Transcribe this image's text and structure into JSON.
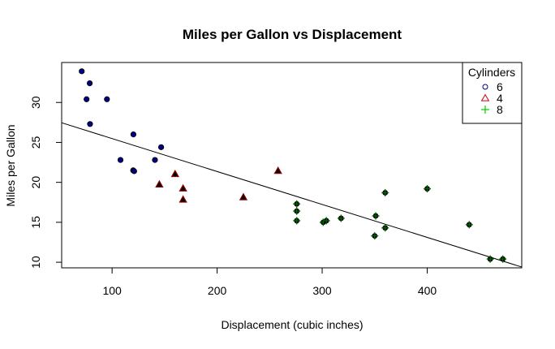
{
  "chart_data": {
    "type": "scatter",
    "title": "Miles per Gallon vs Displacement",
    "xlabel": "Displacement (cubic inches)",
    "ylabel": "Miles per Gallon",
    "xlim": [
      52,
      490
    ],
    "ylim": [
      9.3,
      35.0
    ],
    "xticks": [
      100,
      200,
      300,
      400
    ],
    "yticks": [
      10,
      15,
      20,
      25,
      30
    ],
    "grid": false,
    "legend": {
      "title": "Cylinders",
      "position": "top-right",
      "entries": [
        {
          "label": "6",
          "marker": "circle",
          "color": "#000080"
        },
        {
          "label": "4",
          "marker": "triangle",
          "color": "#cc0000"
        },
        {
          "label": "8",
          "marker": "plus",
          "color": "#00cc00"
        }
      ]
    },
    "series": [
      {
        "marker": "circle",
        "color": "#000080",
        "points": [
          [
            71.1,
            33.9
          ],
          [
            75.7,
            30.4
          ],
          [
            78.7,
            32.4
          ],
          [
            79.0,
            27.3
          ],
          [
            95.1,
            30.4
          ],
          [
            108.0,
            22.8
          ],
          [
            120.1,
            21.5
          ],
          [
            120.3,
            26.0
          ],
          [
            121.0,
            21.4
          ],
          [
            140.8,
            22.8
          ],
          [
            146.7,
            24.4
          ]
        ]
      },
      {
        "marker": "triangle",
        "color": "#8b0000",
        "points": [
          [
            145.0,
            19.7
          ],
          [
            160.0,
            21.0
          ],
          [
            167.6,
            19.2
          ],
          [
            167.6,
            17.8
          ],
          [
            225.0,
            18.1
          ],
          [
            258.0,
            21.4
          ]
        ]
      },
      {
        "marker": "plus",
        "color": "#006400",
        "points": [
          [
            275.8,
            17.3
          ],
          [
            275.8,
            16.4
          ],
          [
            275.8,
            15.2
          ],
          [
            301.0,
            15.0
          ],
          [
            304.0,
            15.2
          ],
          [
            318.0,
            15.5
          ],
          [
            350.0,
            13.3
          ],
          [
            351.0,
            15.8
          ],
          [
            360.0,
            14.3
          ],
          [
            360.0,
            18.7
          ],
          [
            400.0,
            19.2
          ],
          [
            440.0,
            14.7
          ],
          [
            460.0,
            10.4
          ],
          [
            472.0,
            10.4
          ]
        ]
      }
    ],
    "fit_line": {
      "slope": -0.04122,
      "intercept": 29.6
    }
  }
}
